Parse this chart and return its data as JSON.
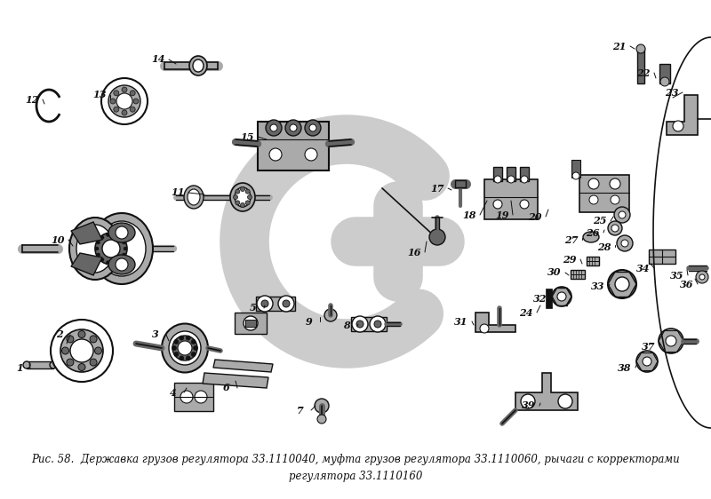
{
  "caption": "Рис. 58.  Державка грузов регулятора 33.1110040, муфта грузов регулятора 33.1110060, рычаги с корректорами\nрегулятора 33.1110160",
  "bg_color": "#ffffff",
  "fig_width": 8.0,
  "fig_height": 5.62,
  "dpi": 100,
  "caption_fontsize": 8.5,
  "watermark_color": "#cccccc",
  "gray": "#111111",
  "lgray": "#888888",
  "partgray": "#d0d0d0"
}
